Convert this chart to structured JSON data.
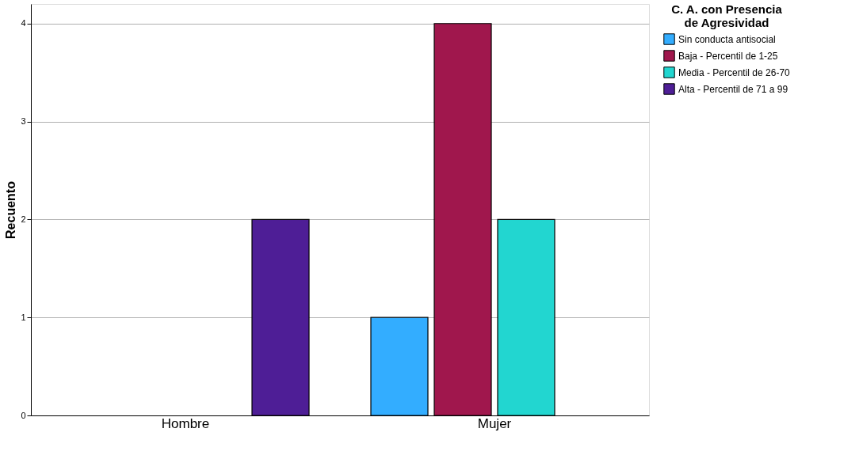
{
  "chart_data": {
    "type": "bar",
    "ylabel": "Recuento",
    "legend_title": "C. A. con Presencia de Agresividad",
    "categories": [
      "Hombre",
      "Mujer"
    ],
    "series": [
      {
        "name": "Sin conducta antisocial",
        "color": "#33adff",
        "values": [
          null,
          1
        ]
      },
      {
        "name": "Baja - Percentil de 1-25",
        "color": "#a0174d",
        "values": [
          null,
          4
        ]
      },
      {
        "name": "Media - Percentil de 26-70",
        "color": "#22d6d0",
        "values": [
          null,
          2
        ]
      },
      {
        "name": "Alta - Percentil de 71 a 99",
        "color": "#4e1e96",
        "values": [
          2,
          null
        ]
      }
    ],
    "ylim": [
      0,
      4.2
    ],
    "yticks": [
      0,
      1,
      2,
      3,
      4
    ],
    "grid": "y",
    "legend": "top right"
  }
}
